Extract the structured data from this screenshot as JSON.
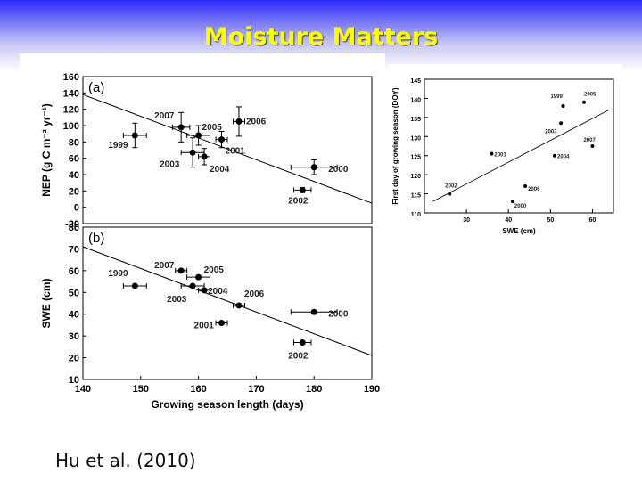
{
  "slide": {
    "title": "Moisture Matters",
    "citation": "Hu et al. (2010)"
  },
  "chart_data": [
    {
      "type": "scatter",
      "panel": "(a)",
      "xlabel": "",
      "ylabel": "NEP (g C m⁻² yr⁻¹)",
      "xlim": [
        140,
        190
      ],
      "ylim": [
        -20,
        160
      ],
      "yticks": [
        -20,
        0,
        20,
        40,
        60,
        80,
        100,
        120,
        140,
        160
      ],
      "points": [
        {
          "label": "1999",
          "x": 149,
          "y": 88,
          "xerr": 2,
          "yerr": 15
        },
        {
          "label": "2007",
          "x": 157,
          "y": 98,
          "xerr": 1.5,
          "yerr": 18
        },
        {
          "label": "2005",
          "x": 160,
          "y": 88,
          "xerr": 2,
          "yerr": 12
        },
        {
          "label": "2003",
          "x": 159,
          "y": 67,
          "xerr": 2,
          "yerr": 18
        },
        {
          "label": "2004",
          "x": 161,
          "y": 62,
          "xerr": 1,
          "yerr": 10
        },
        {
          "label": "2001",
          "x": 164,
          "y": 83,
          "xerr": 1,
          "yerr": 10
        },
        {
          "label": "2006",
          "x": 167,
          "y": 105,
          "xerr": 1,
          "yerr": 18
        },
        {
          "label": "2000",
          "x": 180,
          "y": 49,
          "xerr": 4,
          "yerr": 9
        },
        {
          "label": "2002",
          "x": 178,
          "y": 21,
          "xerr": 1.5,
          "yerr": 3
        }
      ],
      "trend": {
        "x": [
          140,
          190
        ],
        "y": [
          138,
          5
        ]
      },
      "grid": false
    },
    {
      "type": "scatter",
      "panel": "(b)",
      "xlabel": "Growing season length (days)",
      "ylabel": "SWE (cm)",
      "xlim": [
        140,
        190
      ],
      "ylim": [
        10,
        80
      ],
      "xticks": [
        140,
        150,
        160,
        170,
        180,
        190
      ],
      "yticks": [
        10,
        20,
        30,
        40,
        50,
        60,
        70,
        80
      ],
      "points": [
        {
          "label": "1999",
          "x": 149,
          "y": 53,
          "xerr": 2
        },
        {
          "label": "2007",
          "x": 157,
          "y": 60,
          "xerr": 1
        },
        {
          "label": "2005",
          "x": 160,
          "y": 57,
          "xerr": 2
        },
        {
          "label": "2003",
          "x": 159,
          "y": 53,
          "xerr": 2
        },
        {
          "label": "2004",
          "x": 161,
          "y": 51,
          "xerr": 1
        },
        {
          "label": "2006",
          "x": 167,
          "y": 44,
          "xerr": 1
        },
        {
          "label": "2001",
          "x": 164,
          "y": 36,
          "xerr": 1
        },
        {
          "label": "2000",
          "x": 180,
          "y": 41,
          "xerr": 4
        },
        {
          "label": "2002",
          "x": 178,
          "y": 27,
          "xerr": 1.5
        }
      ],
      "trend": {
        "x": [
          140,
          190
        ],
        "y": [
          71,
          21
        ]
      },
      "grid": false
    },
    {
      "type": "scatter",
      "xlabel": "SWE (cm)",
      "ylabel": "First day of growing season (DOY)",
      "xlim": [
        20,
        65
      ],
      "ylim": [
        110,
        145
      ],
      "xticks": [
        30,
        40,
        50,
        60
      ],
      "yticks": [
        110,
        115,
        120,
        125,
        130,
        135,
        140,
        145
      ],
      "points": [
        {
          "label": "1999",
          "x": 53,
          "y": 138
        },
        {
          "label": "2005",
          "x": 58,
          "y": 139
        },
        {
          "label": "2003",
          "x": 52.5,
          "y": 133.5
        },
        {
          "label": "2007",
          "x": 60,
          "y": 127.5
        },
        {
          "label": "2004",
          "x": 51,
          "y": 125
        },
        {
          "label": "2001",
          "x": 36,
          "y": 125.5
        },
        {
          "label": "2006",
          "x": 44,
          "y": 117
        },
        {
          "label": "2002",
          "x": 26,
          "y": 115
        },
        {
          "label": "2000",
          "x": 41,
          "y": 113
        }
      ],
      "trend": {
        "x": [
          22,
          64
        ],
        "y": [
          113,
          137
        ]
      },
      "grid": false
    }
  ]
}
